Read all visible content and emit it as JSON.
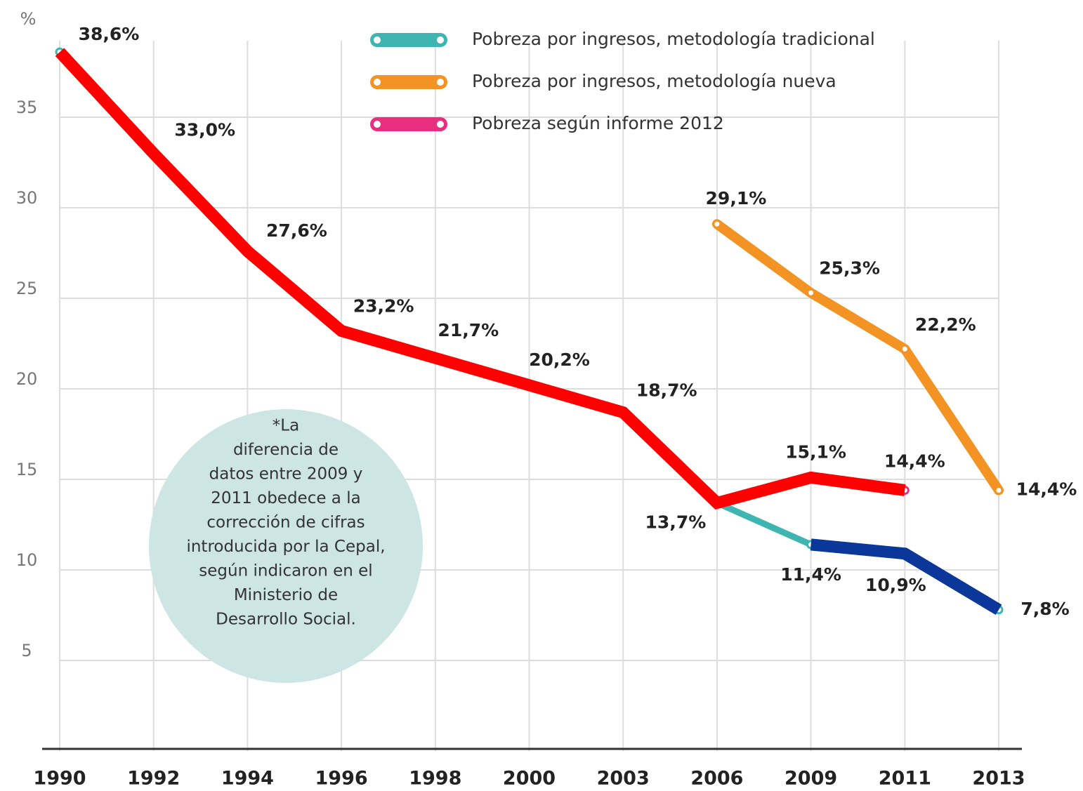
{
  "chart_data": {
    "type": "line",
    "ylabel": "%",
    "categories": [
      "1990",
      "1992",
      "1994",
      "1996",
      "1998",
      "2000",
      "2003",
      "2006",
      "2009",
      "2011",
      "2013"
    ],
    "series": [
      {
        "name": "Pobreza por ingresos, metodología tradicional",
        "color": "#3fb5b2",
        "values": [
          38.6,
          33.0,
          27.6,
          23.2,
          21.7,
          20.2,
          18.7,
          13.7,
          11.4,
          10.9,
          7.8
        ],
        "value_labels": [
          "38,6%",
          "33,0%",
          "27,6%",
          "23,2%",
          "21,7%",
          "20,2%",
          "18,7%",
          "13,7%",
          "11,4%",
          "10,9%",
          "7,8%"
        ]
      },
      {
        "name": "Pobreza por ingresos, metodología nueva",
        "color": "#f39324",
        "values": [
          null,
          null,
          null,
          null,
          null,
          null,
          null,
          29.1,
          25.3,
          22.2,
          14.4
        ],
        "value_labels": [
          null,
          null,
          null,
          null,
          null,
          null,
          null,
          "29,1%",
          "25,3%",
          "22,2%",
          "14,4%"
        ]
      },
      {
        "name": "Pobreza según informe 2012",
        "color": "#ea2e7f",
        "values": [
          null,
          null,
          null,
          null,
          null,
          null,
          null,
          13.7,
          15.1,
          14.4,
          null
        ],
        "value_labels": [
          null,
          null,
          null,
          null,
          null,
          null,
          null,
          null,
          "15,1%",
          "14,4%",
          null
        ]
      },
      {
        "color": "#ff0000",
        "values": [
          38.6,
          33.0,
          27.6,
          23.2,
          21.7,
          20.2,
          18.7,
          13.7,
          15.1,
          14.4,
          null
        ]
      },
      {
        "color": "#0a3799",
        "values": [
          null,
          null,
          null,
          null,
          null,
          null,
          null,
          null,
          11.4,
          10.9,
          7.8
        ]
      }
    ],
    "ylim": [
      0,
      40
    ],
    "yticks": [
      5,
      10,
      15,
      20,
      25,
      30,
      35
    ],
    "grid": true,
    "annotation": [
      "*La",
      "diferencia de",
      "datos entre 2009 y",
      "2011 obedece a la",
      "corrección de cifras",
      "introducida por la Cepal,",
      "según indicaron en el",
      "Ministerio de",
      "Desarrollo Social."
    ]
  }
}
